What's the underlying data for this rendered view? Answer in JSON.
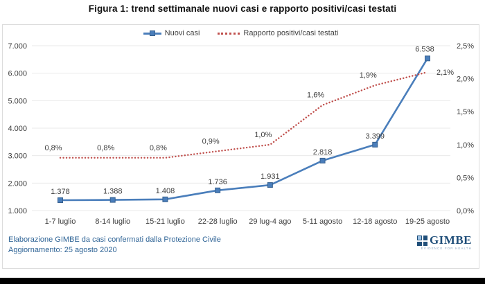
{
  "title": "Figura 1: trend settimanale nuovi casi e rapporto positivi/casi testati",
  "legend": [
    {
      "label": "Nuovi casi",
      "color": "#4a7ebb",
      "style": "line-square"
    },
    {
      "label": "Rapporto positivi/casi testati",
      "color": "#c0504d",
      "style": "dotted"
    }
  ],
  "chart_data": {
    "type": "line",
    "categories": [
      "1-7 luglio",
      "8-14 luglio",
      "15-21 luglio",
      "22-28 luglio",
      "29 lug-4 ago",
      "5-11 agosto",
      "12-18 agosto",
      "19-25 agosto"
    ],
    "series": [
      {
        "name": "Nuovi casi",
        "axis": "left",
        "style": "solid-square",
        "color": "#4a7ebb",
        "marker_border": "#38618f",
        "values": [
          1378,
          1388,
          1408,
          1736,
          1931,
          2818,
          3399,
          6538
        ],
        "labels": [
          "1.378",
          "1.388",
          "1.408",
          "1.736",
          "1.931",
          "2.818",
          "3.399",
          "6.538"
        ]
      },
      {
        "name": "Rapporto positivi/casi testati",
        "axis": "right",
        "style": "dotted",
        "color": "#c0504d",
        "values": [
          0.8,
          0.8,
          0.8,
          0.9,
          1.0,
          1.6,
          1.9,
          2.1
        ],
        "labels": [
          "0,8%",
          "0,8%",
          "0,8%",
          "0,9%",
          "1,0%",
          "1,6%",
          "1,9%",
          "2,1%"
        ]
      }
    ],
    "left_axis": {
      "min": 1000,
      "max": 7000,
      "ticks_top_to_bottom": [
        "7.000",
        "6.000",
        "5.000",
        "4.000",
        "3.000",
        "2.000",
        "1.000"
      ]
    },
    "right_axis": {
      "min": 0,
      "max": 2.5,
      "ticks_top_to_bottom": [
        "2,5%",
        "2,0%",
        "1,5%",
        "1,0%",
        "0,5%",
        "0,0%"
      ]
    },
    "grid": true,
    "grid_color": "#e9e9e9",
    "legend_position": "top"
  },
  "footer": {
    "line1": "Elaborazione GIMBE da casi confermati dalla Protezione Civile",
    "line2": "Aggiornamento: 25 agosto 2020"
  },
  "logo": {
    "text": "GIMBE",
    "tagline": "EVIDENCE FOR HEALTH"
  }
}
